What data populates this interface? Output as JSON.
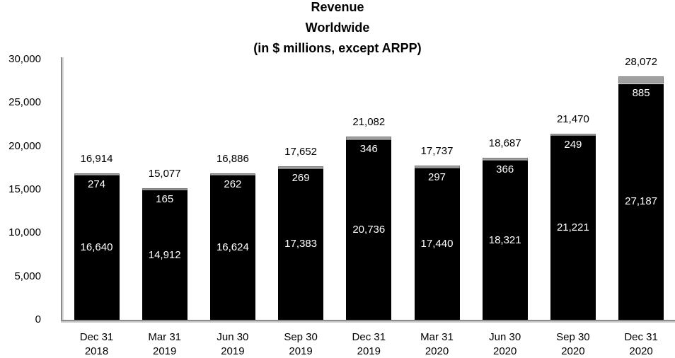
{
  "chart_data": {
    "type": "bar",
    "stacked": true,
    "title": "Revenue Worldwide (in $ millions, except ARPP)",
    "title_lines": [
      "Revenue",
      "Worldwide",
      "(in $ millions, except ARPP)"
    ],
    "categories": [
      "Dec 31 2018",
      "Mar 31 2019",
      "Jun 30 2019",
      "Sep 30 2019",
      "Dec 31 2019",
      "Mar 31 2020",
      "Jun 30 2020",
      "Sep 30 2020",
      "Dec 31 2020"
    ],
    "category_labels": [
      [
        "Dec 31",
        "2018"
      ],
      [
        "Mar 31",
        "2019"
      ],
      [
        "Jun 30",
        "2019"
      ],
      [
        "Sep 30",
        "2019"
      ],
      [
        "Dec 31",
        "2019"
      ],
      [
        "Mar 31",
        "2020"
      ],
      [
        "Jun 30",
        "2020"
      ],
      [
        "Sep 30",
        "2020"
      ],
      [
        "Dec 31",
        "2020"
      ]
    ],
    "series": [
      {
        "name": "bottom-black-segment",
        "color": "#000000",
        "values": [
          16640,
          14912,
          16624,
          17383,
          20736,
          17440,
          18321,
          21221,
          27187
        ],
        "labels": [
          "16,640",
          "14,912",
          "16,624",
          "17,383",
          "20,736",
          "17,440",
          "18,321",
          "21,221",
          "27,187"
        ]
      },
      {
        "name": "top-gray-segment",
        "color": "#a0a0a0",
        "values": [
          274,
          165,
          262,
          269,
          346,
          297,
          366,
          249,
          885
        ],
        "labels": [
          "274",
          "165",
          "262",
          "269",
          "346",
          "297",
          "366",
          "249",
          "885"
        ]
      }
    ],
    "totals": [
      16914,
      15077,
      16886,
      17652,
      21082,
      17737,
      18687,
      21470,
      28072
    ],
    "total_labels": [
      "16,914",
      "15,077",
      "16,886",
      "17,652",
      "21,082",
      "17,737",
      "18,687",
      "21,470",
      "28,072"
    ],
    "ylim": [
      0,
      30000
    ],
    "yticks": [
      {
        "value": 0,
        "label": "0"
      },
      {
        "value": 5000,
        "label": "5,000"
      },
      {
        "value": 10000,
        "label": "10,000"
      },
      {
        "value": 15000,
        "label": "15,000"
      },
      {
        "value": 20000,
        "label": "20,000"
      },
      {
        "value": 25000,
        "label": "25,000"
      },
      {
        "value": 30000,
        "label": "30,000"
      }
    ],
    "grid": false,
    "legend": "none"
  }
}
